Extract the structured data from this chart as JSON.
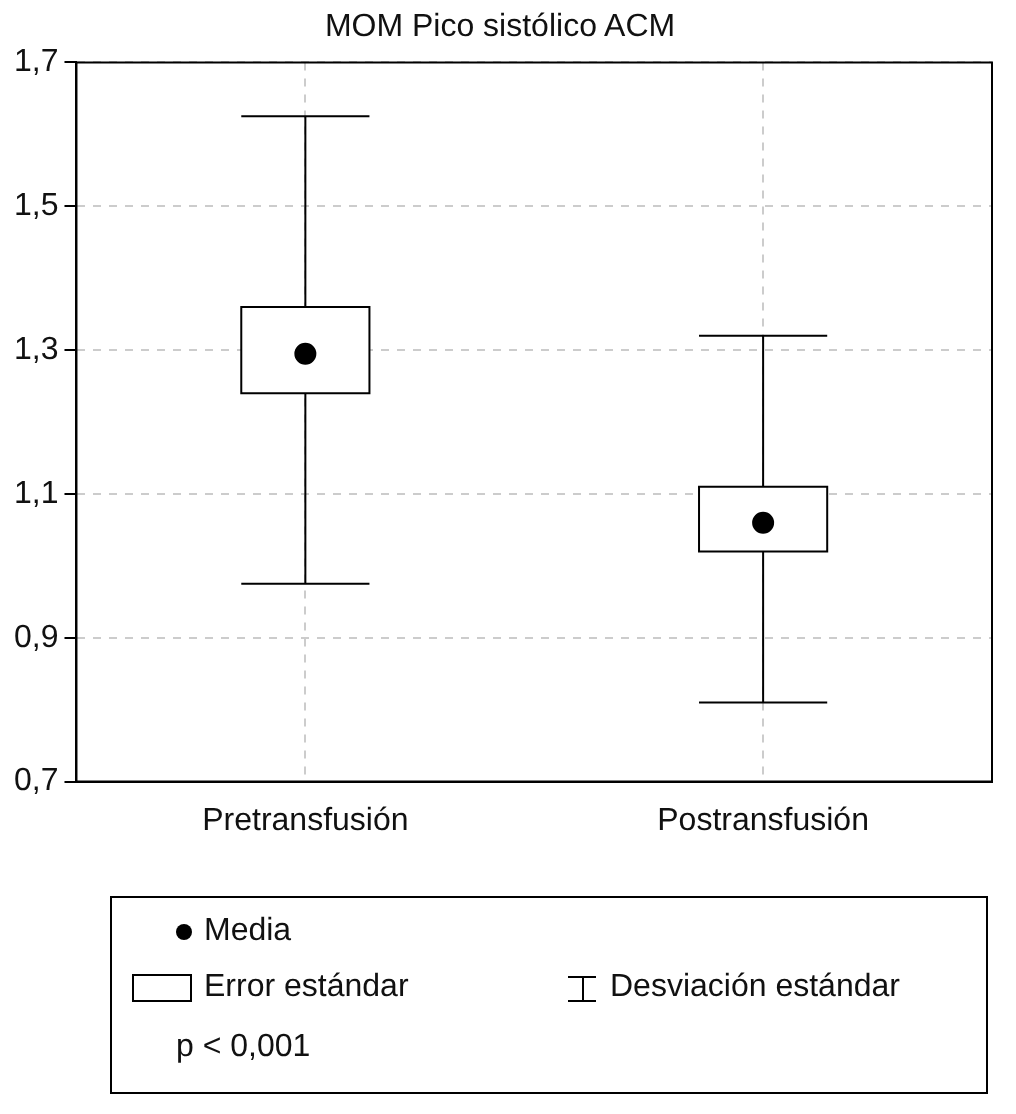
{
  "chart_data": {
    "type": "box",
    "title": "MOM Pico sistólico ACM",
    "categories": [
      "Pretransfusión",
      "Postransfusión"
    ],
    "boxes": [
      {
        "low": 0.975,
        "q1": 1.24,
        "q3": 1.36,
        "high": 1.625,
        "mean": 1.295
      },
      {
        "low": 0.81,
        "q1": 1.02,
        "q3": 1.11,
        "high": 1.32,
        "mean": 1.06
      }
    ],
    "ylim": [
      0.7,
      1.7
    ],
    "yticks": [
      {
        "value": 0.7,
        "label": "0,7"
      },
      {
        "value": 0.9,
        "label": "0,9"
      },
      {
        "value": 1.1,
        "label": "1,1"
      },
      {
        "value": 1.3,
        "label": "1,3"
      },
      {
        "value": 1.5,
        "label": "1,5"
      },
      {
        "value": 1.7,
        "label": "1,7"
      }
    ],
    "grid": true,
    "annotations": [
      "Media",
      "Error estándar",
      "Desviación estándar",
      "p < 0,001"
    ]
  }
}
